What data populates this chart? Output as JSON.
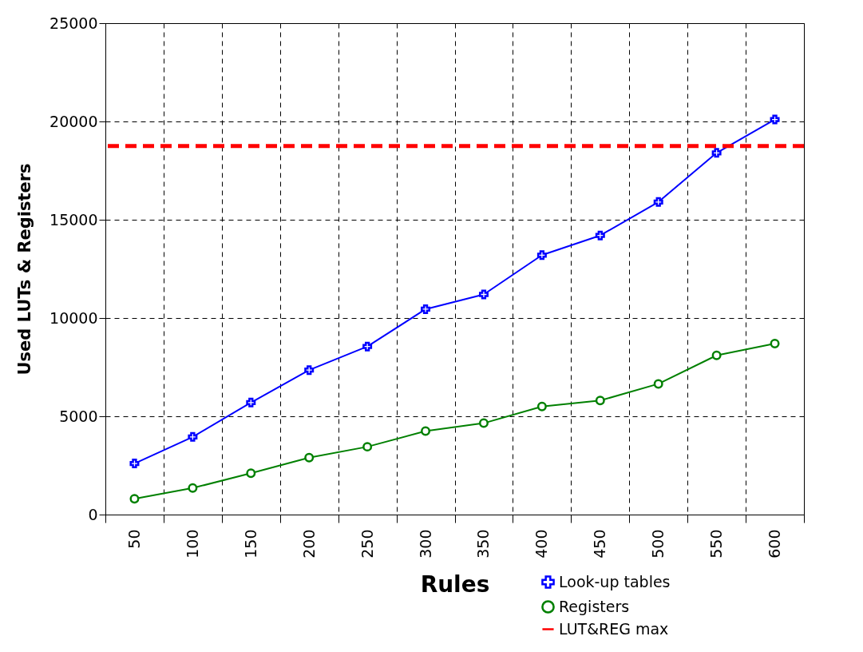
{
  "chart_data": {
    "type": "line",
    "xlabel": "Rules",
    "ylabel": "Used LUTs & Registers",
    "categories": [
      "50",
      "100",
      "150",
      "200",
      "250",
      "300",
      "350",
      "400",
      "450",
      "500",
      "550",
      "600"
    ],
    "series": [
      {
        "name": "Look-up tables",
        "color": "#0000ff",
        "marker": "cross",
        "values": [
          2600,
          3950,
          5700,
          7350,
          8550,
          10450,
          11200,
          13200,
          14200,
          15900,
          18400,
          20100
        ]
      },
      {
        "name": "Registers",
        "color": "#008000",
        "marker": "circle",
        "values": [
          800,
          1350,
          2100,
          2900,
          3450,
          4250,
          4650,
          5500,
          5800,
          6650,
          8100,
          8700
        ]
      }
    ],
    "ref_lines": [
      {
        "axis": "y",
        "value": 18750,
        "label": "LUT&REG max",
        "color": "#ff0000",
        "line_style": "dashed"
      }
    ],
    "ylim": [
      0,
      25000
    ],
    "yticks": [
      0,
      5000,
      10000,
      15000,
      20000,
      25000
    ],
    "grid": true,
    "legend": "bottom right"
  }
}
